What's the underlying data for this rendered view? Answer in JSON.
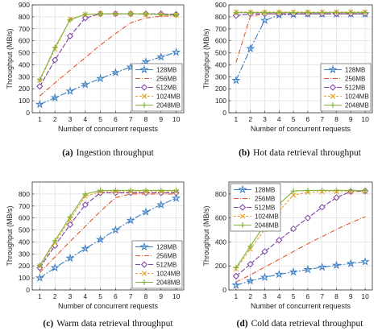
{
  "chart_data": [
    {
      "type": "line",
      "caption_tag": "(a)",
      "caption": "Ingestion throughput",
      "xlabel": "Number of concurrent requests",
      "ylabel": "Throughput (MB/s)",
      "x": [
        1,
        2,
        3,
        4,
        5,
        6,
        7,
        8,
        9,
        10
      ],
      "xlim": [
        0.5,
        10.5
      ],
      "ylim": [
        0,
        900
      ],
      "yticks": [
        0,
        100,
        200,
        300,
        400,
        500,
        600,
        700,
        800,
        900
      ],
      "grid": true,
      "legend_position": "bottom-right",
      "series": [
        {
          "name": "128MB",
          "color": "#3b7fc4",
          "marker": "star",
          "dash": "8,2,2,2",
          "values": [
            70,
            125,
            180,
            235,
            285,
            335,
            380,
            425,
            465,
            505
          ]
        },
        {
          "name": "256MB",
          "color": "#e0552b",
          "marker": "none",
          "dash": "6,2,1,2",
          "values": [
            140,
            250,
            355,
            460,
            565,
            660,
            750,
            790,
            805,
            810
          ]
        },
        {
          "name": "512MB",
          "color": "#7b3fa0",
          "marker": "diamond",
          "dash": "6,2",
          "values": [
            220,
            440,
            640,
            790,
            825,
            825,
            825,
            825,
            825,
            820
          ]
        },
        {
          "name": "1024MB",
          "color": "#e8a12a",
          "marker": "x",
          "dash": "3,2",
          "values": [
            270,
            530,
            780,
            820,
            825,
            825,
            825,
            820,
            820,
            815
          ]
        },
        {
          "name": "2048MB",
          "color": "#7fb53a",
          "marker": "plus",
          "dash": "",
          "values": [
            275,
            545,
            775,
            820,
            825,
            825,
            825,
            825,
            820,
            815
          ]
        }
      ]
    },
    {
      "type": "line",
      "caption_tag": "(b)",
      "caption": "Hot data retrieval throughput",
      "xlabel": "Number of concurrent requests",
      "ylabel": "Throughput (MB/s)",
      "x": [
        1,
        2,
        3,
        4,
        5,
        6,
        7,
        8,
        9,
        10
      ],
      "xlim": [
        0.5,
        10.5
      ],
      "ylim": [
        0,
        900
      ],
      "yticks": [
        0,
        100,
        200,
        300,
        400,
        500,
        600,
        700,
        800,
        900
      ],
      "grid": true,
      "legend_position": "bottom-right",
      "series": [
        {
          "name": "128MB",
          "color": "#3b7fc4",
          "marker": "star",
          "dash": "8,2,2,2",
          "values": [
            270,
            535,
            770,
            815,
            820,
            825,
            825,
            825,
            825,
            825
          ]
        },
        {
          "name": "256MB",
          "color": "#e0552b",
          "marker": "none",
          "dash": "6,2,1,2",
          "values": [
            420,
            805,
            825,
            825,
            825,
            825,
            825,
            825,
            825,
            825
          ]
        },
        {
          "name": "512MB",
          "color": "#7b3fa0",
          "marker": "diamond",
          "dash": "6,2",
          "values": [
            810,
            825,
            825,
            825,
            825,
            825,
            825,
            825,
            825,
            825
          ]
        },
        {
          "name": "1024MB",
          "color": "#e8a12a",
          "marker": "x",
          "dash": "3,2",
          "values": [
            840,
            840,
            840,
            840,
            840,
            840,
            840,
            840,
            840,
            840
          ]
        },
        {
          "name": "2048MB",
          "color": "#7fb53a",
          "marker": "plus",
          "dash": "",
          "values": [
            835,
            835,
            835,
            835,
            835,
            835,
            835,
            835,
            835,
            835
          ]
        }
      ]
    },
    {
      "type": "line",
      "caption_tag": "(c)",
      "caption": "Warm data retrieval throughput",
      "xlabel": "Number of concurrent requests",
      "ylabel": "Throughput (MB/s)",
      "x": [
        1,
        2,
        3,
        4,
        5,
        6,
        7,
        8,
        9,
        10
      ],
      "xlim": [
        0.5,
        10.5
      ],
      "ylim": [
        0,
        900
      ],
      "yticks": [
        0,
        100,
        200,
        300,
        400,
        500,
        600,
        700,
        800
      ],
      "grid": true,
      "legend_position": "bottom-right",
      "series": [
        {
          "name": "128MB",
          "color": "#3b7fc4",
          "marker": "star",
          "dash": "8,2,2,2",
          "values": [
            100,
            185,
            265,
            345,
            420,
            500,
            580,
            650,
            710,
            765
          ]
        },
        {
          "name": "256MB",
          "color": "#e0552b",
          "marker": "none",
          "dash": "6,2,1,2",
          "values": [
            145,
            275,
            405,
            530,
            655,
            770,
            800,
            800,
            800,
            800
          ]
        },
        {
          "name": "512MB",
          "color": "#7b3fa0",
          "marker": "diamond",
          "dash": "6,2",
          "values": [
            185,
            370,
            545,
            710,
            810,
            810,
            810,
            810,
            810,
            810
          ]
        },
        {
          "name": "1024MB",
          "color": "#e8a12a",
          "marker": "x",
          "dash": "3,2",
          "values": [
            200,
            395,
            590,
            780,
            820,
            820,
            820,
            820,
            820,
            820
          ]
        },
        {
          "name": "2048MB",
          "color": "#7fb53a",
          "marker": "plus",
          "dash": "",
          "values": [
            205,
            410,
            610,
            800,
            830,
            830,
            830,
            830,
            830,
            830
          ]
        }
      ]
    },
    {
      "type": "line",
      "caption_tag": "(d)",
      "caption": "Cold data retrieval throughput",
      "xlabel": "Number of concurrent requests",
      "ylabel": "Throughput (MB/s)",
      "x": [
        1,
        2,
        3,
        4,
        5,
        6,
        7,
        8,
        9,
        10
      ],
      "xlim": [
        0.5,
        10.5
      ],
      "ylim": [
        0,
        900
      ],
      "yticks": [
        0,
        200,
        400,
        600,
        800
      ],
      "grid": true,
      "legend_position": "top-left",
      "series": [
        {
          "name": "128MB",
          "color": "#3b7fc4",
          "marker": "star",
          "dash": "8,2,2,2",
          "values": [
            40,
            75,
            105,
            130,
            150,
            170,
            190,
            205,
            220,
            235
          ]
        },
        {
          "name": "256MB",
          "color": "#e0552b",
          "marker": "none",
          "dash": "6,2,1,2",
          "values": [
            65,
            125,
            190,
            255,
            320,
            385,
            445,
            505,
            560,
            610
          ]
        },
        {
          "name": "512MB",
          "color": "#7b3fa0",
          "marker": "diamond",
          "dash": "6,2",
          "values": [
            115,
            215,
            320,
            415,
            510,
            600,
            690,
            770,
            820,
            825
          ]
        },
        {
          "name": "1024MB",
          "color": "#e8a12a",
          "marker": "x",
          "dash": "3,2",
          "values": [
            175,
            340,
            505,
            660,
            790,
            815,
            820,
            820,
            820,
            820
          ]
        },
        {
          "name": "2048MB",
          "color": "#7fb53a",
          "marker": "plus",
          "dash": "",
          "values": [
            185,
            365,
            545,
            715,
            825,
            830,
            830,
            830,
            830,
            830
          ]
        }
      ]
    }
  ]
}
